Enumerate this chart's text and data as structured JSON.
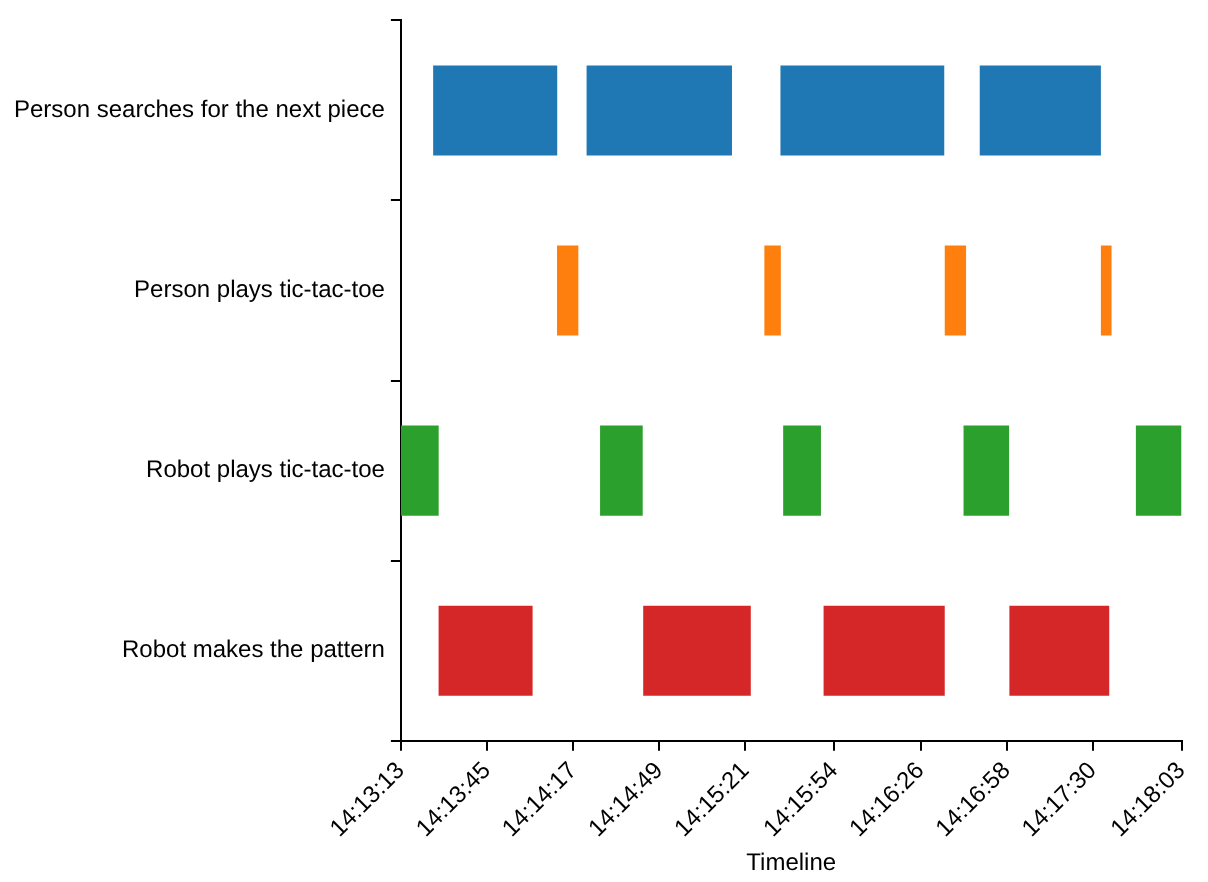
{
  "chart_data": {
    "type": "bar",
    "orientation": "horizontal",
    "xlabel": "Timeline",
    "categories": [
      "Person searches for the next piece",
      "Person plays tic-tac-toe",
      "Robot plays tic-tac-toe",
      "Robot makes the pattern"
    ],
    "series": [
      {
        "colors": [
          "#1f77b4",
          "#ff7f0e",
          "#2ca02c",
          "#d62728"
        ],
        "base": [
          14.22361,
          14.23639,
          14.22028,
          14.22417
        ],
        "values": [
          0.0128,
          0.0022,
          0.0039,
          0.0097
        ]
      },
      {
        "colors": [
          "#1f77b4",
          "#ff7f0e",
          "#2ca02c",
          "#d62728"
        ],
        "base": [
          14.23944,
          14.25778,
          14.24083,
          14.24528
        ],
        "values": [
          0.015,
          0.0017,
          0.0044,
          0.0111
        ]
      },
      {
        "colors": [
          "#1f77b4",
          "#ff7f0e",
          "#2ca02c",
          "#d62728"
        ],
        "base": [
          14.25944,
          14.27639,
          14.25972,
          14.26389
        ],
        "values": [
          0.0169,
          0.0022,
          0.0039,
          0.0125
        ]
      },
      {
        "colors": [
          "#1f77b4",
          "#ff7f0e",
          "#2ca02c",
          "#d62728"
        ],
        "base": [
          14.28,
          14.2925,
          14.27833,
          14.28306
        ],
        "values": [
          0.0125,
          0.0011,
          0.0047,
          0.0103
        ]
      },
      {
        "colors": [
          "#1f77b4",
          "#ff7f0e",
          "#2ca02c",
          "#d62728"
        ],
        "base": [
          null,
          null,
          14.29611,
          null
        ],
        "values": [
          null,
          null,
          0.0047,
          null
        ]
      }
    ],
    "xlim": [
      14.22028,
      14.30083
    ],
    "xticks": [
      {
        "value": 14.22028,
        "label": "14:13:13"
      },
      {
        "value": 14.22917,
        "label": "14:13:45"
      },
      {
        "value": 14.23806,
        "label": "14:14:17"
      },
      {
        "value": 14.24694,
        "label": "14:14:49"
      },
      {
        "value": 14.25583,
        "label": "14:15:21"
      },
      {
        "value": 14.265,
        "label": "14:15:54"
      },
      {
        "value": 14.27389,
        "label": "14:16:26"
      },
      {
        "value": 14.28278,
        "label": "14:16:58"
      },
      {
        "value": 14.29167,
        "label": "14:17:30"
      },
      {
        "value": 14.30083,
        "label": "14:18:03"
      }
    ],
    "grid": false,
    "legend": false
  }
}
